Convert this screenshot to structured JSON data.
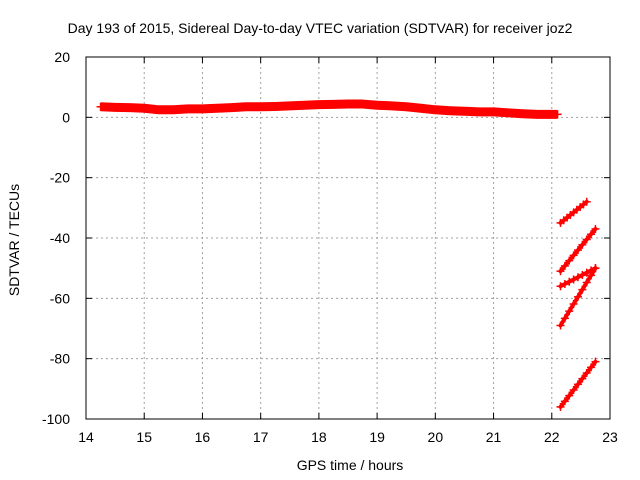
{
  "chart_data": {
    "type": "scatter",
    "title": "Day 193 of 2015, Sidereal Day-to-day VTEC variation (SDTVAR) for receiver joz2",
    "xlabel": "GPS time / hours",
    "ylabel": "SDTVAR / TECUs",
    "xlim": [
      14,
      23
    ],
    "ylim": [
      -100,
      20
    ],
    "xticks": [
      "14",
      "15",
      "16",
      "17",
      "18",
      "19",
      "20",
      "21",
      "22",
      "23"
    ],
    "yticks": [
      "20",
      "0",
      "-20",
      "-40",
      "-60",
      "-80",
      "-100"
    ],
    "grid": true,
    "series": [
      {
        "color": "#ff0000",
        "x": [
          14.25,
          14.5,
          14.75,
          15.0,
          15.25,
          15.5,
          15.75,
          16.0,
          16.25,
          16.5,
          16.75,
          17.0,
          17.25,
          17.5,
          17.75,
          18.0,
          18.25,
          18.5,
          18.75,
          19.0,
          19.25,
          19.5,
          19.75,
          20.0,
          20.25,
          20.5,
          20.75,
          21.0,
          21.25,
          21.5,
          21.75,
          22.0,
          22.1
        ],
        "y": [
          3.5,
          3.3,
          3.2,
          3.0,
          2.5,
          2.5,
          2.8,
          2.8,
          3.0,
          3.2,
          3.5,
          3.5,
          3.6,
          3.8,
          4.0,
          4.2,
          4.3,
          4.4,
          4.4,
          4.0,
          3.8,
          3.5,
          3.0,
          2.5,
          2.2,
          2.0,
          1.8,
          1.8,
          1.5,
          1.2,
          1.0,
          1.0,
          1.0
        ]
      }
    ],
    "segments": [
      {
        "color": "#ff0000",
        "x": [
          22.15,
          22.6
        ],
        "y": [
          -35,
          -28
        ]
      },
      {
        "color": "#ff0000",
        "x": [
          22.15,
          22.75
        ],
        "y": [
          -51,
          -37
        ]
      },
      {
        "color": "#ff0000",
        "x": [
          22.15,
          22.75
        ],
        "y": [
          -56,
          -50
        ]
      },
      {
        "color": "#ff0000",
        "x": [
          22.15,
          22.75
        ],
        "y": [
          -69,
          -50
        ]
      },
      {
        "color": "#ff0000",
        "x": [
          22.15,
          22.75
        ],
        "y": [
          -96,
          -81
        ]
      }
    ]
  }
}
